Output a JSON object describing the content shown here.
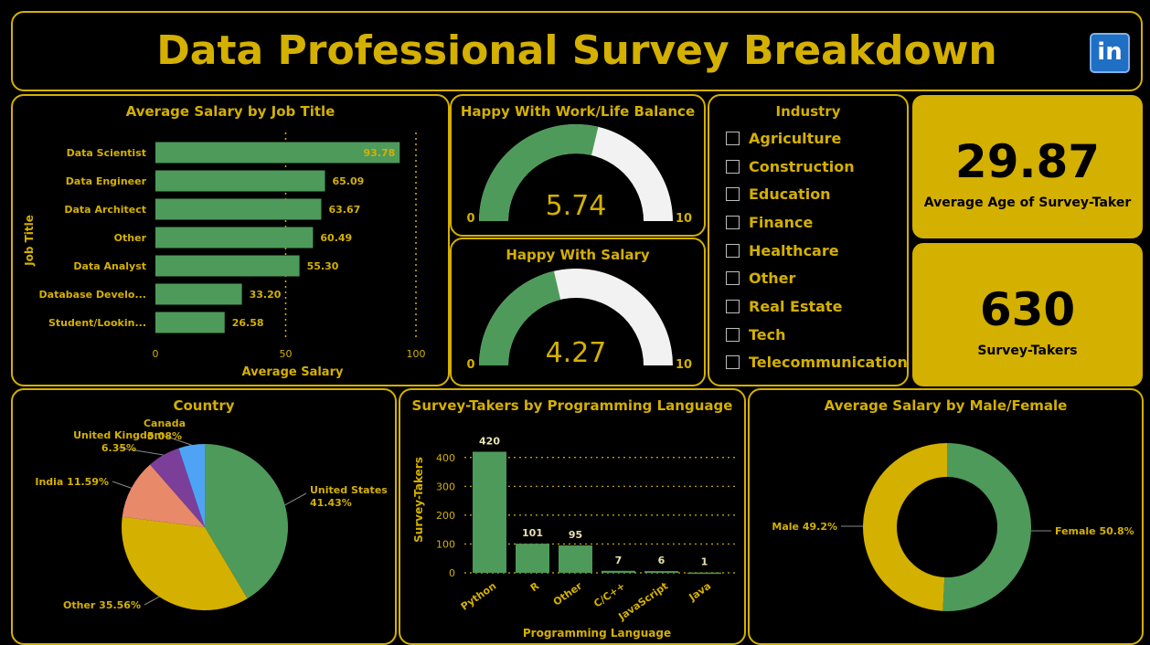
{
  "header": {
    "title": "Data Professional Survey Breakdown",
    "logo_text": "in"
  },
  "colors": {
    "gold": "#d4b000",
    "green": "#4e9a5a",
    "white_arc": "#f2f2f2",
    "background": "#000000",
    "pie_orange": "#e8896a",
    "pie_purple": "#7b3f9a",
    "pie_blue": "#4ea3f5"
  },
  "salary_by_job": {
    "title": "Average Salary by Job Title",
    "xlabel": "Average Salary",
    "ylabel": "Job Title"
  },
  "gauges": {
    "work_life": {
      "title": "Happy With Work/Life Balance",
      "value": 5.74,
      "value_text": "5.74",
      "min": "0",
      "max": "10"
    },
    "salary": {
      "title": "Happy With Salary",
      "value": 4.27,
      "value_text": "4.27",
      "min": "0",
      "max": "10"
    }
  },
  "industry": {
    "title": "Industry",
    "items": [
      "Agriculture",
      "Construction",
      "Education",
      "Finance",
      "Healthcare",
      "Other",
      "Real Estate",
      "Tech",
      "Telecommunication"
    ]
  },
  "kpis": {
    "avg_age": {
      "value": "29.87",
      "label": "Average Age of Survey-Taker"
    },
    "survey_takers": {
      "value": "630",
      "label": "Survey-Takers"
    }
  },
  "country": {
    "title": "Country"
  },
  "languages": {
    "title": "Survey-Takers by Programming Language",
    "xlabel": "Programming Language",
    "ylabel": "Survey-Takers"
  },
  "gender": {
    "title": "Average Salary by Male/Female"
  },
  "chart_data": [
    {
      "type": "bar",
      "orientation": "horizontal",
      "title": "Average Salary by Job Title",
      "xlabel": "Average Salary",
      "ylabel": "Job Title",
      "categories": [
        "Data Scientist",
        "Data Engineer",
        "Data Architect",
        "Other",
        "Data Analyst",
        "Database Develo...",
        "Student/Lookin..."
      ],
      "values": [
        93.78,
        65.09,
        63.67,
        60.49,
        55.3,
        33.2,
        26.58
      ],
      "value_labels": [
        "93.78",
        "65.09",
        "63.67",
        "60.49",
        "55.30",
        "33.20",
        "26.58"
      ],
      "xticks": [
        "0",
        "50",
        "100"
      ],
      "xlim": [
        0,
        100
      ],
      "grid": true
    },
    {
      "type": "pie",
      "title": "Country",
      "labels": [
        "United States",
        "Other",
        "India",
        "United Kingdom",
        "Canada"
      ],
      "values": [
        41.43,
        35.56,
        11.59,
        6.35,
        5.08
      ],
      "value_labels": [
        "41.43%",
        "35.56%",
        "11.59%",
        "6.35%",
        "5.08%"
      ]
    },
    {
      "type": "bar",
      "title": "Survey-Takers by Programming Language",
      "xlabel": "Programming Language",
      "ylabel": "Survey-Takers",
      "categories": [
        "Python",
        "R",
        "Other",
        "C/C++",
        "JavaScript",
        "Java"
      ],
      "values": [
        420,
        101,
        95,
        7,
        6,
        1
      ],
      "value_labels": [
        "420",
        "101",
        "95",
        "7",
        "6",
        "1"
      ],
      "yticks": [
        "0",
        "100",
        "200",
        "300",
        "400"
      ],
      "ylim": [
        0,
        450
      ],
      "grid": true
    },
    {
      "type": "pie",
      "subtype": "donut",
      "title": "Average Salary by Male/Female",
      "labels": [
        "Female",
        "Male"
      ],
      "values": [
        50.8,
        49.2
      ],
      "value_labels": [
        "50.8%",
        "49.2%"
      ]
    }
  ]
}
